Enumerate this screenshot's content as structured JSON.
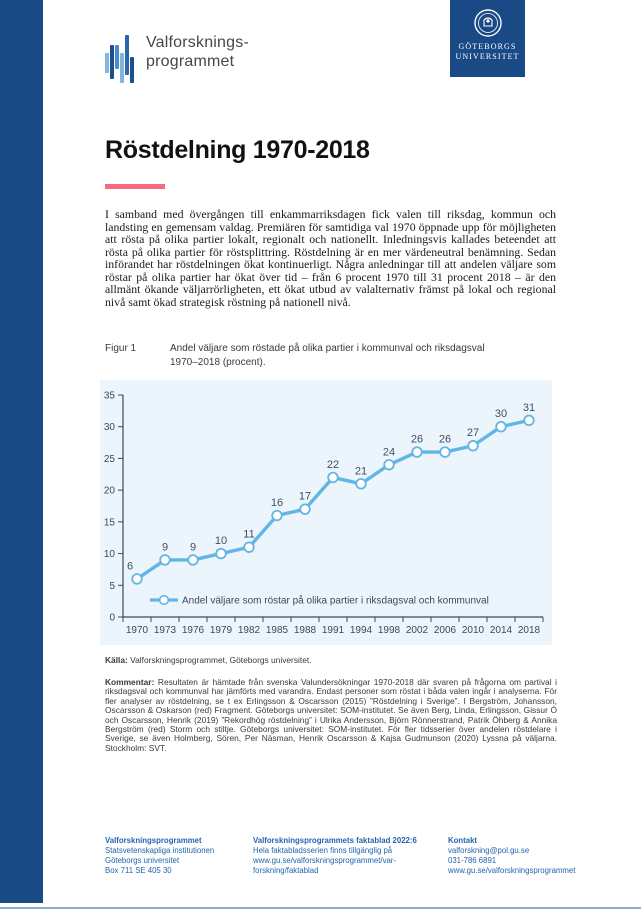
{
  "colors": {
    "brand_navy": "#1a4a86",
    "accent_pink": "#f56a80",
    "footer_blue": "#2166ad"
  },
  "brand": {
    "program_name_line1": "Valforsknings-",
    "program_name_line2": "programmet",
    "university_line1": "GÖTEBORGS",
    "university_line2": "UNIVERSITET"
  },
  "page": {
    "title": "Röstdelning 1970-2018",
    "intro": "I samband med övergången till enkammarriksdagen fick valen till riksdag, kommun och landsting en gemensam valdag. Premiären för samtidiga val 1970 öppnade upp för möjligheten att rösta på olika partier lokalt, regionalt och nationellt. Inledningsvis kallades beteendet att rösta på olika partier för röstsplittring. Röstdelning är en mer värdeneutral benämning. Sedan införandet har röstdelningen ökat kontinuerligt. Några anledningar till att andelen väljare som röstar på olika partier har ökat över tid – från 6 procent 1970 till 31 procent 2018 – är den allmänt ökande väljarrörligheten, ett ökat utbud av valalternativ främst på lokal och regional nivå samt ökad strategisk röstning på nationell nivå.",
    "figure_label": "Figur 1",
    "figure_caption": "Andel väljare som röstade på olika partier i kommunval och riksdagsval 1970–2018 (procent).",
    "source_label": "Källa:",
    "source_text": " Valforskningsprogrammet, Göteborgs universitet.",
    "comment_label": "Kommentar:",
    "comment_text": " Resultaten är hämtade från svenska Valundersökningar 1970-2018 där svaren på frågorna om partival i riksdagsval och kommunval har jämförts med varandra. Endast personer som röstat i båda valen ingår i analyserna. För fler analyser av röstdelning, se t ex Erlingsson & Oscarsson (2015) ”Röstdelning i Sverige”. I Bergström, Johansson, Oscarsson & Oskarson (red) Fragment. Göteborgs universitet: SOM-institutet. Se även Berg, Linda, Erlingsson, Gissur Ó och Oscarsson, Henrik (2019) ”Rekordhög röstdelning” i Ulrika Andersson, Björn Rönnerstrand, Patrik Öhberg & Annika Bergström (red) Storm och stiltje. Göteborgs universitet: SOM-institutet. För fler tidsserier över andelen röstdelare i Sverige, se även Holmberg, Sören, Per Näsman, Henrik Oscarsson & Kajsa Gudmunson (2020) Lyssna på väljarna. Stockholm: SVT."
  },
  "chart_data": {
    "type": "line",
    "title": "Andel väljare som röstade på olika partier i kommunval och riksdagsval 1970–2018 (procent)",
    "categories": [
      "1970",
      "1973",
      "1976",
      "1979",
      "1982",
      "1985",
      "1988",
      "1991",
      "1994",
      "1998",
      "2002",
      "2006",
      "2010",
      "2014",
      "2018"
    ],
    "series": [
      {
        "name": "Andel väljare som röstar på olika partier i riksdagsval och kommunval",
        "values": [
          6,
          9,
          9,
          10,
          11,
          16,
          17,
          22,
          21,
          24,
          26,
          26,
          27,
          30,
          31
        ]
      }
    ],
    "xlabel": "",
    "ylabel": "",
    "ylim": [
      0,
      35
    ],
    "yticks": [
      0,
      5,
      10,
      15,
      20,
      25,
      30,
      35
    ],
    "grid": false,
    "legend_position": "inside-bottom-left",
    "data_labels": true,
    "line_color": "#62b5e5",
    "marker_fill": "#ffffff",
    "background": "#edf5fc",
    "axis_color": "#39495c",
    "value_label_color": "#3c5065"
  },
  "footer": {
    "columns": [
      {
        "title": "Valforskningsprogrammet",
        "lines": [
          "Statsvetenskapliga institutionen",
          "Göteborgs universitet",
          "Box 711 SE 405 30"
        ]
      },
      {
        "title": "Valforskningsprogrammets faktablad 2022:6",
        "lines": [
          "Hela faktabladsserien finns tillgänglig på",
          "www.gu.se/valforskningsprogrammet/var-",
          "forskning/faktablad"
        ]
      },
      {
        "title": "Kontakt",
        "lines": [
          "valforskning@pol.gu.se",
          "031-786 6891",
          "www.gu.se/valforskningsprogrammet"
        ]
      }
    ]
  }
}
